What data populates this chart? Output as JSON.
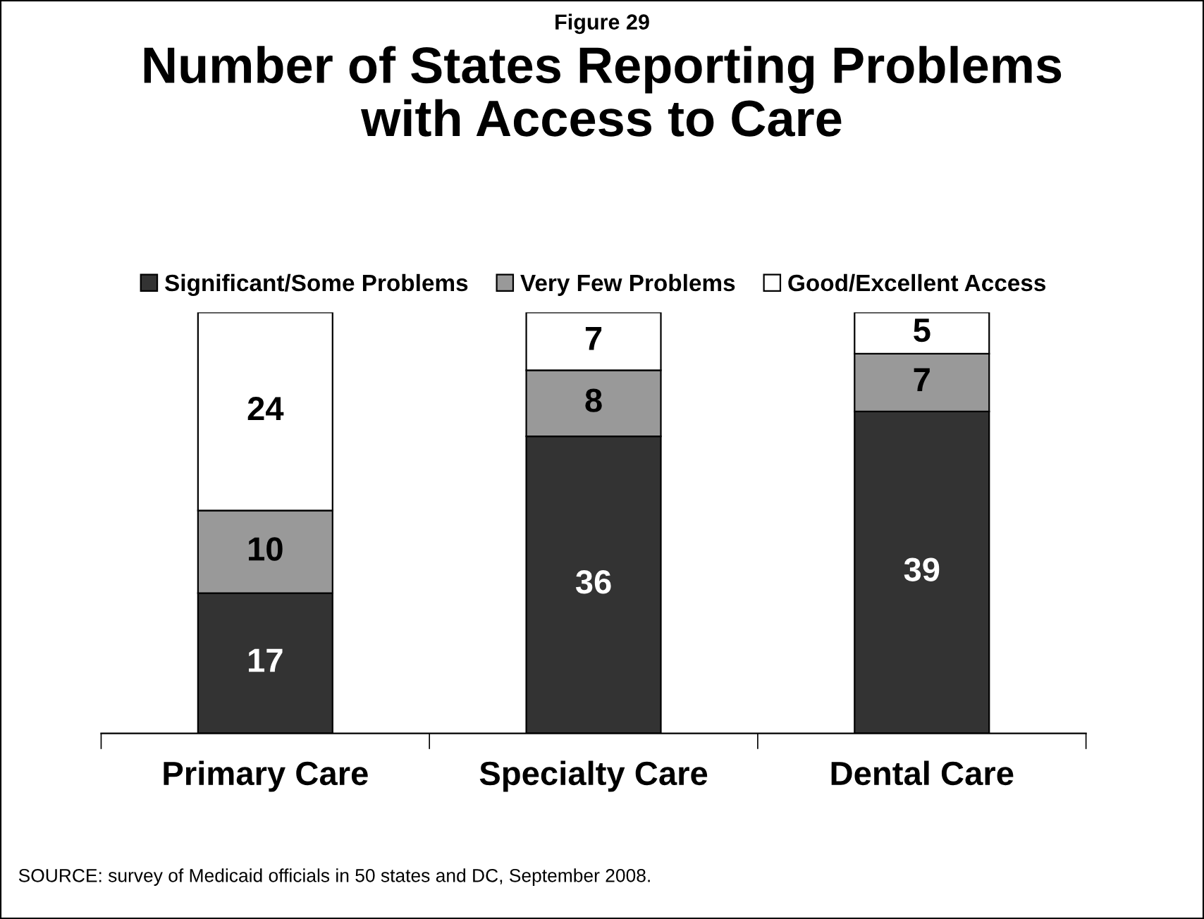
{
  "chart_data": {
    "type": "bar",
    "stacked": true,
    "subtitle": "Figure 29",
    "title": "Number of States Reporting Problems\nwith Access to Care",
    "categories": [
      "Primary Care",
      "Specialty Care",
      "Dental Care"
    ],
    "series": [
      {
        "name": "Significant/Some Problems",
        "color": "#333333",
        "values": [
          17,
          36,
          39
        ]
      },
      {
        "name": "Very Few Problems",
        "color": "#999999",
        "values": [
          10,
          8,
          7
        ]
      },
      {
        "name": "Good/Excellent Access",
        "color": "#ffffff",
        "values": [
          24,
          7,
          5
        ]
      }
    ],
    "data_labels": true,
    "legend": "top",
    "grid": false,
    "tick_labels": "x",
    "annotations": [
      "SOURCE: survey of Medicaid officials in 50 states and DC, September 2008."
    ]
  }
}
